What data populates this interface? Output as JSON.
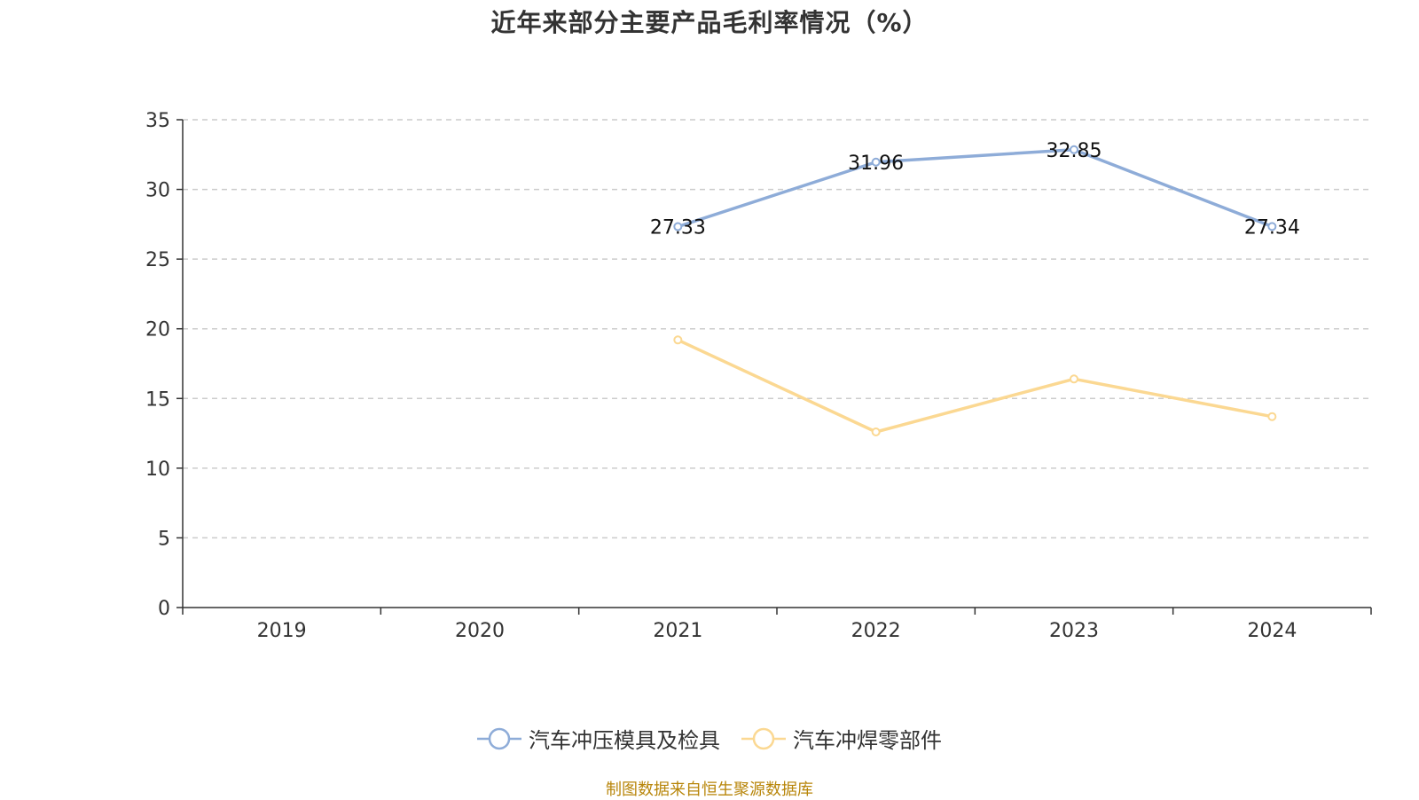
{
  "chart_data": {
    "type": "line",
    "title": "近年来部分主要产品毛利率情况（%）",
    "categories": [
      "2019",
      "2020",
      "2021",
      "2022",
      "2023",
      "2024"
    ],
    "ylim": [
      0,
      35
    ],
    "yticks": [
      0,
      5,
      10,
      15,
      20,
      25,
      30,
      35
    ],
    "grid": true,
    "legend_position": "bottom-center",
    "series": [
      {
        "name": "汽车冲压模具及检具",
        "color": "#8eacd8",
        "values": [
          null,
          null,
          27.33,
          31.96,
          32.85,
          27.34
        ],
        "labels": [
          "",
          "",
          "27.33",
          "31.96",
          "32.85",
          "27.34"
        ]
      },
      {
        "name": "汽车冲焊零部件",
        "color": "#fbd892",
        "values": [
          null,
          null,
          19.2,
          12.6,
          16.4,
          13.7
        ],
        "labels": [
          "",
          "",
          "",
          "",
          "",
          ""
        ]
      }
    ]
  },
  "footer": {
    "source": "制图数据来自恒生聚源数据库"
  }
}
